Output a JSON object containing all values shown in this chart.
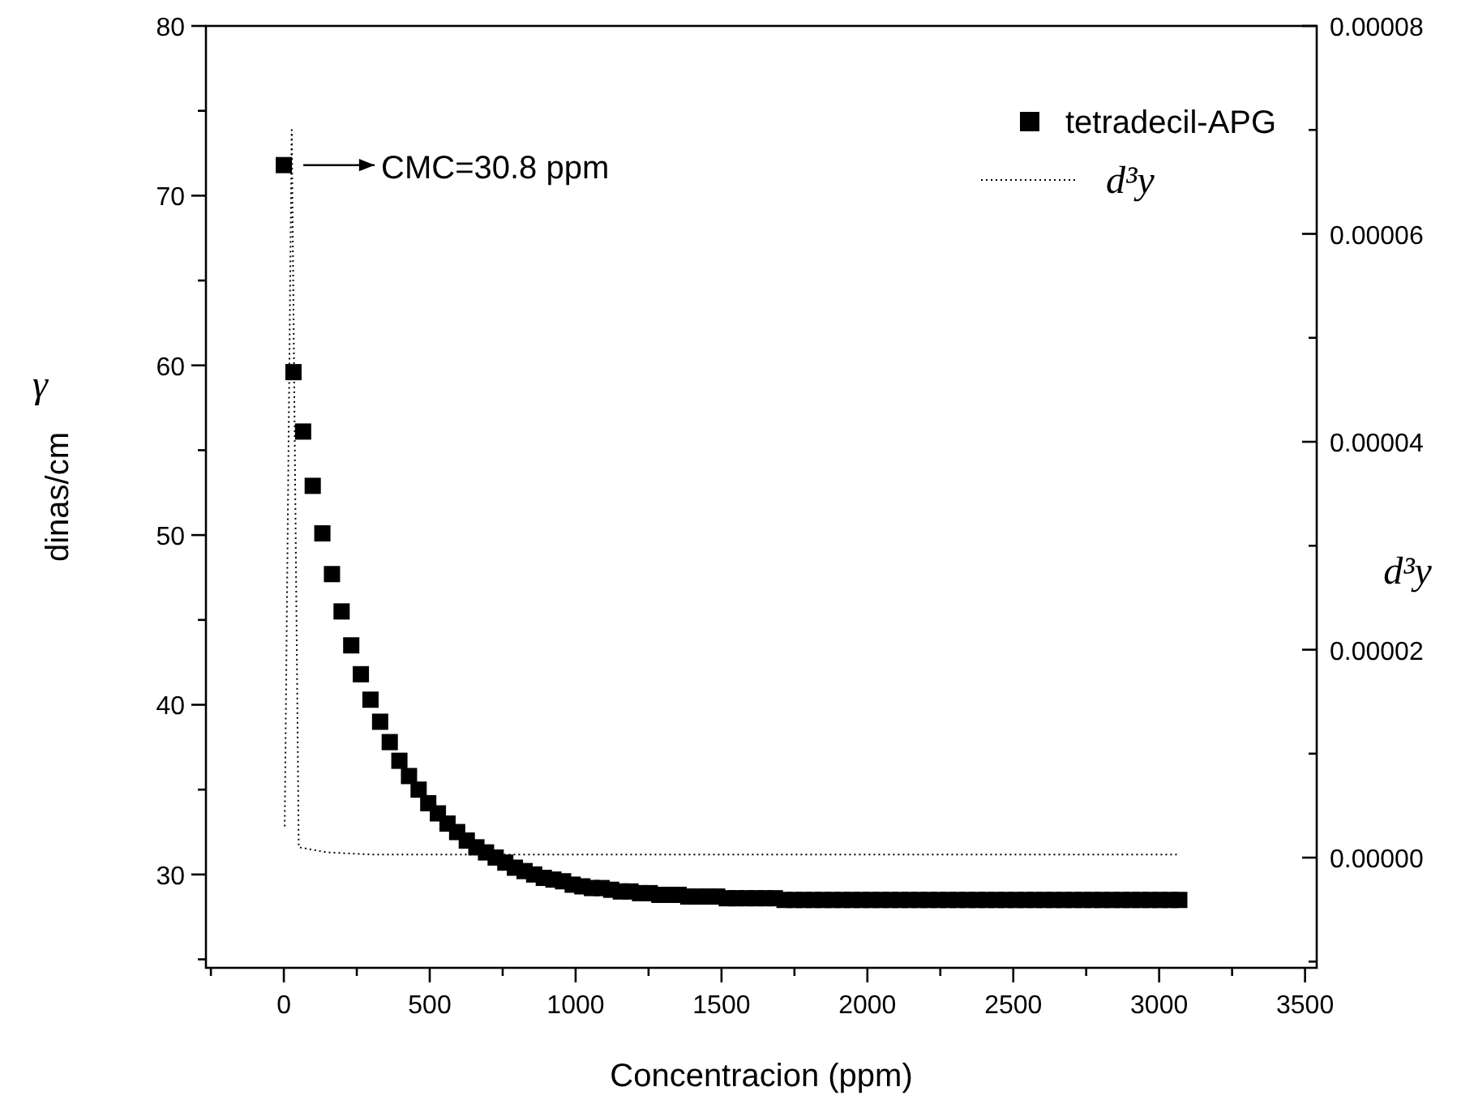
{
  "chart_data": {
    "type": "scatter",
    "xlabel": "Concentracion (ppm)",
    "ylabel": "dinas/cm",
    "y2label": "d³y",
    "annotations": [
      "γ",
      {
        "text": "CMC=30.8 ppm",
        "x": 0,
        "y": 71.8
      }
    ],
    "xlim": [
      -267,
      3540
    ],
    "ylim": [
      24.5,
      80
    ],
    "y2lim": [
      -1.06e-05,
      8e-05
    ],
    "xticks": [
      {
        "value": -250,
        "label": null
      },
      0,
      {
        "value": 250,
        "label": null
      },
      500,
      {
        "value": 750,
        "label": null
      },
      1000,
      {
        "value": 1250,
        "label": null
      },
      1500,
      {
        "value": 1750,
        "label": null
      },
      2000,
      {
        "value": 2250,
        "label": null
      },
      2500,
      {
        "value": 2750,
        "label": null
      },
      3000,
      {
        "value": 3250,
        "label": null
      },
      3500
    ],
    "yticks": [
      {
        "value": 25,
        "label": null
      },
      30,
      {
        "value": 35,
        "label": null
      },
      40,
      {
        "value": 45,
        "label": null
      },
      50,
      {
        "value": 55,
        "label": null
      },
      60,
      {
        "value": 65,
        "label": null
      },
      70,
      {
        "value": 75,
        "label": null
      },
      80
    ],
    "y2ticks": [
      {
        "value": -1e-05,
        "label": null
      },
      {
        "value": 0,
        "label": "0.00000"
      },
      {
        "value": 1e-05,
        "label": null
      },
      {
        "value": 2e-05,
        "label": "0.00002"
      },
      {
        "value": 3e-05,
        "label": null
      },
      {
        "value": 4e-05,
        "label": "0.00004"
      },
      {
        "value": 5e-05,
        "label": null
      },
      {
        "value": 6e-05,
        "label": "0.00006"
      },
      {
        "value": 7e-05,
        "label": null
      },
      {
        "value": 8e-05,
        "label": "0.00008"
      }
    ],
    "legend": "top right",
    "grid": false,
    "series": [
      {
        "name": "tetradecil-APG",
        "marker": "square",
        "color": "#000000",
        "x": [
          0,
          33,
          66,
          99,
          132,
          165,
          198,
          231,
          264,
          297,
          330,
          363,
          396,
          429,
          462,
          495,
          528,
          561,
          594,
          627,
          660,
          693,
          726,
          759,
          792,
          825,
          858,
          891,
          924,
          957,
          990,
          1023,
          1056,
          1089,
          1122,
          1155,
          1188,
          1221,
          1254,
          1287,
          1320,
          1353,
          1386,
          1419,
          1452,
          1485,
          1518,
          1551,
          1584,
          1617,
          1650,
          1683,
          1716,
          1749,
          1782,
          1815,
          1848,
          1881,
          1914,
          1947,
          1980,
          2013,
          2046,
          2079,
          2112,
          2145,
          2178,
          2211,
          2244,
          2277,
          2310,
          2343,
          2376,
          2409,
          2442,
          2475,
          2508,
          2541,
          2574,
          2607,
          2640,
          2673,
          2706,
          2739,
          2772,
          2805,
          2838,
          2871,
          2904,
          2937,
          2970,
          3003,
          3036,
          3069
        ],
        "values": [
          71.8,
          59.6,
          56.1,
          52.9,
          50.1,
          47.7,
          45.5,
          43.5,
          41.8,
          40.3,
          39.0,
          37.8,
          36.7,
          35.8,
          35.0,
          34.2,
          33.6,
          33.0,
          32.5,
          32.0,
          31.6,
          31.3,
          31.0,
          30.7,
          30.4,
          30.2,
          30.0,
          29.8,
          29.7,
          29.6,
          29.4,
          29.3,
          29.2,
          29.2,
          29.1,
          29.0,
          29.0,
          28.9,
          28.9,
          28.8,
          28.8,
          28.8,
          28.7,
          28.7,
          28.7,
          28.7,
          28.6,
          28.6,
          28.6,
          28.6,
          28.6,
          28.6,
          28.5,
          28.5,
          28.5,
          28.5,
          28.5,
          28.5,
          28.5,
          28.5,
          28.5,
          28.5,
          28.5,
          28.5,
          28.5,
          28.5,
          28.5,
          28.5,
          28.5,
          28.5,
          28.5,
          28.5,
          28.5,
          28.5,
          28.5,
          28.5,
          28.5,
          28.5,
          28.5,
          28.5,
          28.5,
          28.5,
          28.5,
          28.5,
          28.5,
          28.5,
          28.5,
          28.5,
          28.5,
          28.5,
          28.5,
          28.5,
          28.5,
          28.5
        ]
      },
      {
        "name": "d³y",
        "type": "line",
        "axis": "y2",
        "line_style": "dotted",
        "color": "#000000",
        "x": [
          3,
          27,
          51,
          150,
          300,
          600,
          3069
        ],
        "values": [
          3e-06,
          7e-05,
          1e-06,
          5e-07,
          3e-07,
          3e-07,
          3e-07
        ]
      }
    ]
  }
}
